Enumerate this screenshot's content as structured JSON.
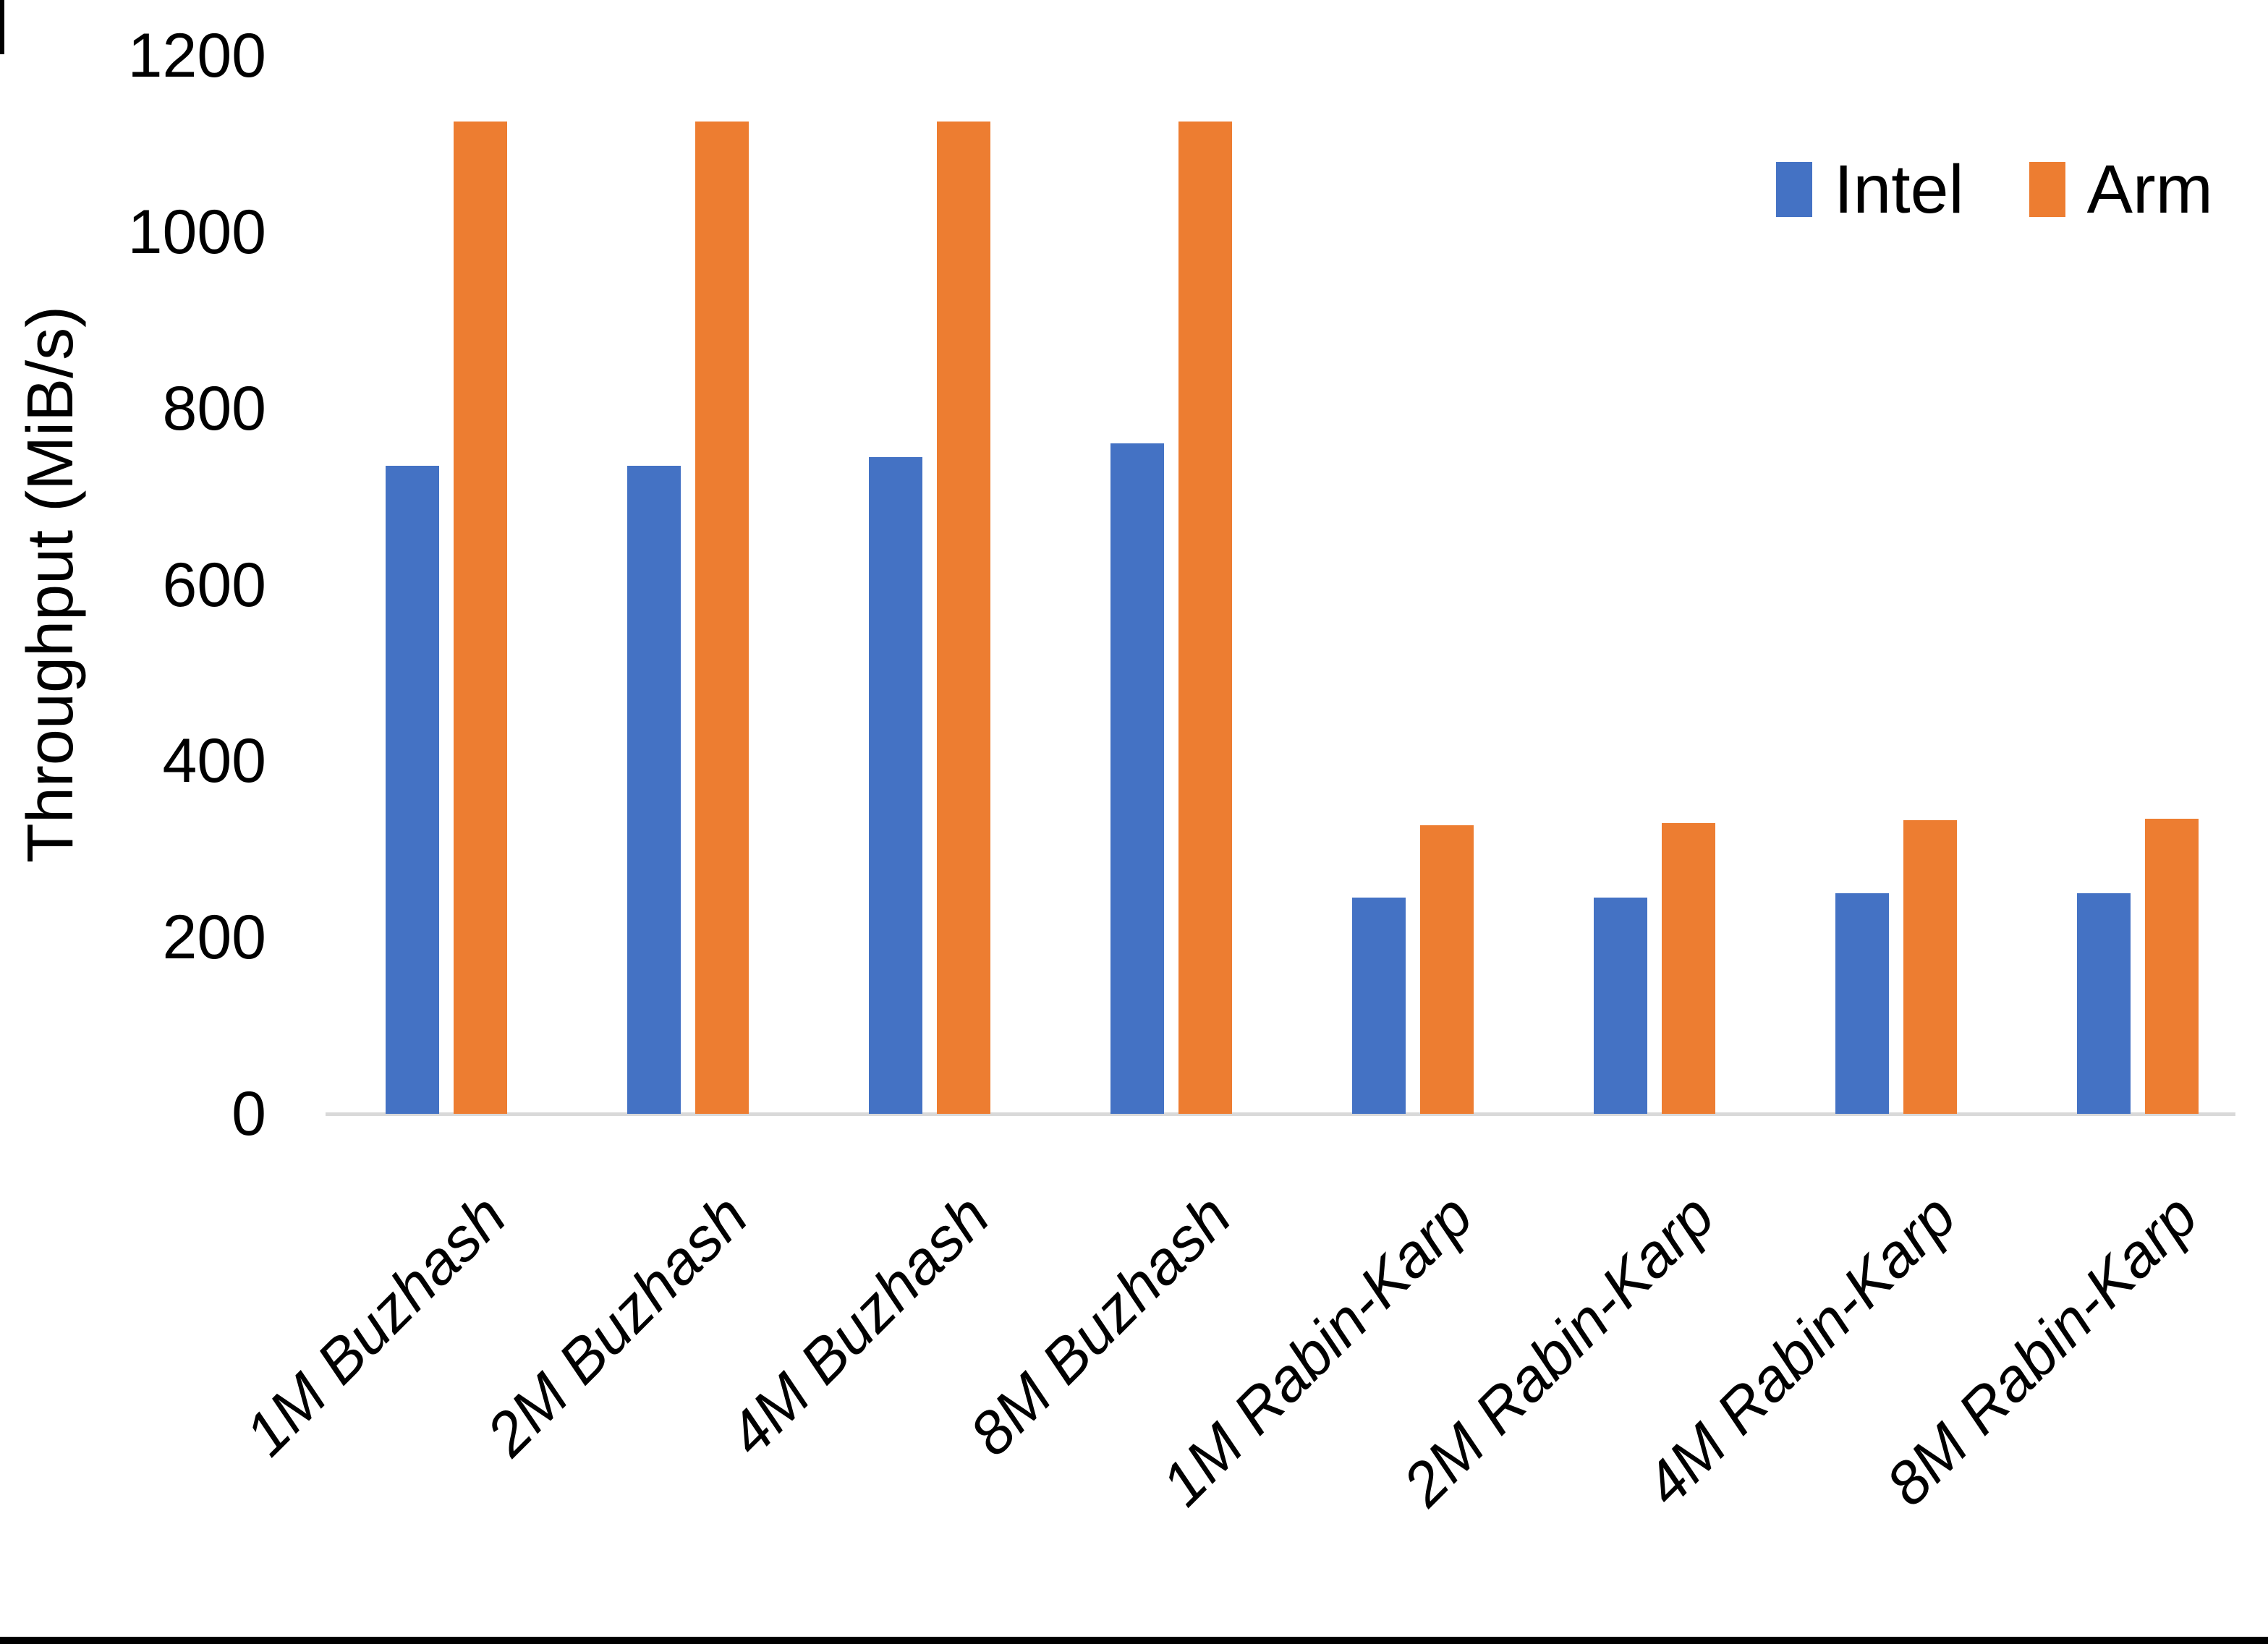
{
  "page": {
    "background_color": "#ffffff",
    "frame_bottom_bar_color": "#000000",
    "frame_left_sliver_color": "#000000",
    "axis_line_color": "#D9D9D9",
    "text_color": "#000000"
  },
  "legend": {
    "position": "top-right",
    "entries": [
      {
        "label": "Intel",
        "color": "#4472C4"
      },
      {
        "label": "Arm",
        "color": "#ED7D31"
      }
    ]
  },
  "chart_data": {
    "type": "bar",
    "title": "",
    "xlabel": "",
    "ylabel": "Throughput (MiB/s)",
    "categories": [
      "1M Buzhash",
      "2M Buzhash",
      "4M Buzhash",
      "8M Buzhash",
      "1M Rabin-Karp",
      "2M Rabin-Karp",
      "4M Rabin-Karp",
      "8M Rabin-Karp"
    ],
    "series": [
      {
        "name": "Intel",
        "color": "#4472C4",
        "values": [
          735,
          735,
          745,
          760,
          245,
          245,
          250,
          250
        ]
      },
      {
        "name": "Arm",
        "color": "#ED7D31",
        "values": [
          1125,
          1125,
          1125,
          1125,
          327,
          330,
          333,
          335
        ]
      }
    ],
    "ylim": [
      0,
      1200
    ],
    "y_ticks": [
      0,
      200,
      400,
      600,
      800,
      1000,
      1200
    ],
    "grid": false,
    "legend_position": "top-right"
  }
}
